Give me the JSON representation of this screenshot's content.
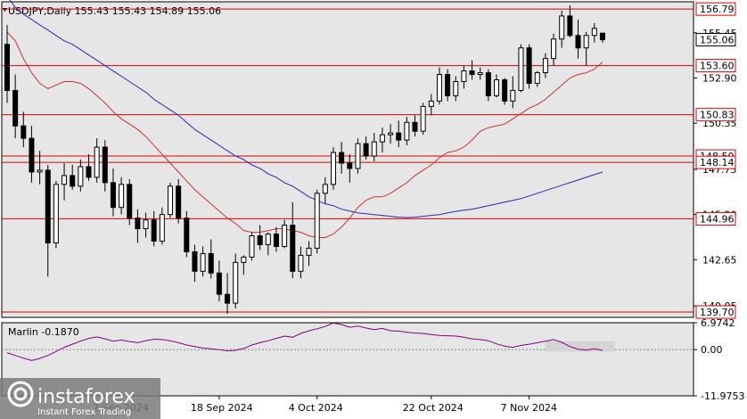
{
  "header": {
    "title": "USDJPY,Daily  155.43 155.43 154.89 155.06"
  },
  "indicator": {
    "title": "Marlin -0.1870",
    "ticks": [
      "6.9742",
      "0.00",
      "-11.9753"
    ]
  },
  "price_ticks": [
    "155.45",
    "152.90",
    "150.35",
    "147.75",
    "145.20",
    "142.65",
    "140.05"
  ],
  "levels": [
    {
      "value": 156.79,
      "label": "156.79",
      "color": "#e00000"
    },
    {
      "value": 153.6,
      "label": "153.60",
      "color": "#e00000"
    },
    {
      "value": 150.83,
      "label": "150.83",
      "color": "#e00000"
    },
    {
      "value": 148.5,
      "label": "148.50",
      "color": "#e00000"
    },
    {
      "value": 148.14,
      "label": "148.14",
      "color": "#e00000"
    },
    {
      "value": 144.96,
      "label": "144.96",
      "color": "#e00000"
    },
    {
      "value": 139.7,
      "label": "139.70",
      "color": "#e00000"
    }
  ],
  "current_price": "155.06",
  "date_labels": [
    "2 Sep 2024",
    "18 Sep 2024",
    "4 Oct 2024",
    "22 Oct 2024",
    "7 Nov 2024"
  ],
  "date_positions": [
    14,
    26,
    38,
    52,
    64
  ],
  "logo": {
    "brand": "instaforex",
    "tagline": "Instant Forex Trading"
  },
  "colors": {
    "background": "#e6e6e6",
    "ma_fast": "#cc3333",
    "ma_slow": "#2a2ab0",
    "oscillator": "#800080",
    "levels": "#e00000",
    "candle_body": "#000000"
  },
  "chart_data": {
    "type": "candlestick",
    "symbol": "USDJPY",
    "timeframe": "Daily",
    "ylim": [
      139.4,
      157.2
    ],
    "candles": [
      [
        154.8,
        155.9,
        151.5,
        152.2
      ],
      [
        152.2,
        153.1,
        149.5,
        150.2
      ],
      [
        150.2,
        151.0,
        149.0,
        149.5
      ],
      [
        149.5,
        150.2,
        147.0,
        147.6
      ],
      [
        147.6,
        148.8,
        146.9,
        147.7
      ],
      [
        147.7,
        148.0,
        141.7,
        143.6
      ],
      [
        143.6,
        147.1,
        143.3,
        146.9
      ],
      [
        146.9,
        148.1,
        146.0,
        147.4
      ],
      [
        147.4,
        148.0,
        146.6,
        146.8
      ],
      [
        146.8,
        148.3,
        146.5,
        147.9
      ],
      [
        147.9,
        148.6,
        147.1,
        147.3
      ],
      [
        147.3,
        149.5,
        147.0,
        149.0
      ],
      [
        149.0,
        149.4,
        146.5,
        147.0
      ],
      [
        147.0,
        147.8,
        145.1,
        145.6
      ],
      [
        145.6,
        147.3,
        145.2,
        146.9
      ],
      [
        146.9,
        147.2,
        144.6,
        145.0
      ],
      [
        145.0,
        145.5,
        143.6,
        144.4
      ],
      [
        144.4,
        145.3,
        143.9,
        144.9
      ],
      [
        144.9,
        145.4,
        143.4,
        143.7
      ],
      [
        143.7,
        145.6,
        143.5,
        145.2
      ],
      [
        145.2,
        147.0,
        145.0,
        146.8
      ],
      [
        146.8,
        147.2,
        144.7,
        145.0
      ],
      [
        145.0,
        145.4,
        142.8,
        143.1
      ],
      [
        143.1,
        143.5,
        141.4,
        142.0
      ],
      [
        142.0,
        143.4,
        141.7,
        143.0
      ],
      [
        143.0,
        143.8,
        141.6,
        141.9
      ],
      [
        141.9,
        142.6,
        140.3,
        140.7
      ],
      [
        140.7,
        141.9,
        139.6,
        140.2
      ],
      [
        140.2,
        143.0,
        139.9,
        142.5
      ],
      [
        142.5,
        142.9,
        141.8,
        142.8
      ],
      [
        142.8,
        144.2,
        142.6,
        144.0
      ],
      [
        144.0,
        144.6,
        143.2,
        143.5
      ],
      [
        143.5,
        144.2,
        142.9,
        144.1
      ],
      [
        144.1,
        144.5,
        143.1,
        143.4
      ],
      [
        143.4,
        144.9,
        143.3,
        144.6
      ],
      [
        144.6,
        145.9,
        141.6,
        142.0
      ],
      [
        142.0,
        143.4,
        141.6,
        142.9
      ],
      [
        142.9,
        143.7,
        142.3,
        143.3
      ],
      [
        143.3,
        146.6,
        143.0,
        146.4
      ],
      [
        146.4,
        147.3,
        145.8,
        146.9
      ],
      [
        146.9,
        149.0,
        146.6,
        148.7
      ],
      [
        148.7,
        149.3,
        147.5,
        148.1
      ],
      [
        148.1,
        148.6,
        147.0,
        147.8
      ],
      [
        147.8,
        149.5,
        147.5,
        149.2
      ],
      [
        149.2,
        149.6,
        148.3,
        148.5
      ],
      [
        148.5,
        149.8,
        148.2,
        149.3
      ],
      [
        149.3,
        150.1,
        148.7,
        149.7
      ],
      [
        149.7,
        150.3,
        149.2,
        149.8
      ],
      [
        149.8,
        150.5,
        149.0,
        149.4
      ],
      [
        149.4,
        150.7,
        149.1,
        150.4
      ],
      [
        150.4,
        150.8,
        149.6,
        149.9
      ],
      [
        149.9,
        151.5,
        149.7,
        151.3
      ],
      [
        151.3,
        152.0,
        150.8,
        151.6
      ],
      [
        151.6,
        153.5,
        151.4,
        153.1
      ],
      [
        153.1,
        153.4,
        151.6,
        151.9
      ],
      [
        151.9,
        153.0,
        151.6,
        152.7
      ],
      [
        152.7,
        153.6,
        152.3,
        153.3
      ],
      [
        153.3,
        153.9,
        152.8,
        153.1
      ],
      [
        153.1,
        153.5,
        152.8,
        153.2
      ],
      [
        153.2,
        153.4,
        151.6,
        151.9
      ],
      [
        151.9,
        153.1,
        151.8,
        152.8
      ],
      [
        152.8,
        152.9,
        151.4,
        151.6
      ],
      [
        151.6,
        153.0,
        151.2,
        152.2
      ],
      [
        152.2,
        154.8,
        152.1,
        154.6
      ],
      [
        154.6,
        154.8,
        152.3,
        152.6
      ],
      [
        152.6,
        153.3,
        152.4,
        153.2
      ],
      [
        153.2,
        154.3,
        152.9,
        154.0
      ],
      [
        154.0,
        155.4,
        153.6,
        155.1
      ],
      [
        155.1,
        156.7,
        154.6,
        156.4
      ],
      [
        156.4,
        157.0,
        155.2,
        155.3
      ],
      [
        155.3,
        156.2,
        154.0,
        154.6
      ],
      [
        154.6,
        155.5,
        153.6,
        155.3
      ],
      [
        155.3,
        156.0,
        154.9,
        155.7
      ],
      [
        155.43,
        155.43,
        154.89,
        155.06
      ]
    ],
    "ma_fast": [
      155.5,
      155.0,
      154.0,
      153.2,
      152.6,
      152.3,
      152.5,
      152.7,
      152.7,
      152.6,
      152.3,
      151.9,
      151.5,
      151.0,
      150.6,
      150.3,
      150.0,
      149.6,
      149.1,
      148.6,
      148.1,
      147.6,
      147.1,
      146.6,
      146.2,
      145.8,
      145.4,
      145.0,
      144.7,
      144.3,
      144.2,
      144.2,
      144.3,
      144.4,
      144.4,
      144.3,
      144.2,
      144.0,
      143.9,
      143.9,
      144.1,
      144.5,
      145.0,
      145.6,
      146.0,
      146.2,
      146.2,
      146.4,
      146.7,
      147.0,
      147.4,
      147.7,
      148.0,
      148.4,
      148.7,
      148.8,
      149.0,
      149.4,
      149.9,
      150.1,
      150.2,
      150.3,
      150.6,
      150.9,
      151.2,
      151.4,
      151.7,
      152.1,
      152.5,
      152.9,
      153.1,
      153.2,
      153.4,
      153.8
    ],
    "ma_slow": [
      157.5,
      156.9,
      156.5,
      156.2,
      155.9,
      155.6,
      155.3,
      155.0,
      154.8,
      154.5,
      154.2,
      153.9,
      153.6,
      153.3,
      153.0,
      152.7,
      152.4,
      152.1,
      151.7,
      151.4,
      151.1,
      150.8,
      150.4,
      150.0,
      149.7,
      149.4,
      149.1,
      148.8,
      148.5,
      148.3,
      148.0,
      147.8,
      147.5,
      147.3,
      147.0,
      146.8,
      146.5,
      146.2,
      146.0,
      145.8,
      145.7,
      145.5,
      145.4,
      145.3,
      145.25,
      145.2,
      145.15,
      145.1,
      145.05,
      145.03,
      145.05,
      145.1,
      145.15,
      145.2,
      145.3,
      145.38,
      145.45,
      145.5,
      145.6,
      145.7,
      145.8,
      145.9,
      146.0,
      146.1,
      146.25,
      146.4,
      146.55,
      146.7,
      146.85,
      147.0,
      147.15,
      147.3,
      147.45,
      147.6
    ],
    "oscillator": [
      -0.8,
      -1.5,
      -2.2,
      -2.8,
      -2.3,
      -1.5,
      -0.5,
      0.6,
      1.4,
      2.2,
      2.9,
      3.3,
      2.8,
      2.2,
      2.5,
      2.1,
      1.8,
      2.3,
      2.7,
      2.6,
      2.3,
      1.8,
      1.2,
      0.8,
      0.4,
      0.2,
      0.0,
      -0.3,
      -0.2,
      0.3,
      1.2,
      1.8,
      2.3,
      2.9,
      3.5,
      3.2,
      4.2,
      4.9,
      5.4,
      6.0,
      6.9,
      6.5,
      5.8,
      6.1,
      5.6,
      5.2,
      5.5,
      4.9,
      4.8,
      4.5,
      4.3,
      4.2,
      3.9,
      3.7,
      3.6,
      3.5,
      3.2,
      2.8,
      2.6,
      2.3,
      1.5,
      0.9,
      0.6,
      1.1,
      1.4,
      1.8,
      2.2,
      2.6,
      1.9,
      0.8,
      0.1,
      -0.1,
      0.2,
      -0.19
    ],
    "oscillator_ylim": [
      -11.9753,
      6.9742
    ]
  }
}
